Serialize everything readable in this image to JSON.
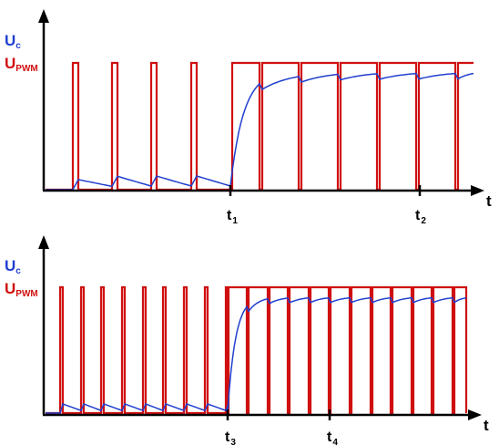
{
  "labels": {
    "uc_letter": "U",
    "uc_sub": "c",
    "upwm_letter": "U",
    "upwm_sub": "PWM",
    "t": "t",
    "t1_letter": "t",
    "t1_sub": "1",
    "t2_letter": "t",
    "t2_sub": "2",
    "t3_letter": "t",
    "t3_sub": "3",
    "t4_letter": "t",
    "t4_sub": "4"
  },
  "colors": {
    "uc": "#1f3fcf",
    "pwm": "#d01010",
    "pwm_light": "#f0a8a8",
    "axis": "#000000"
  }
}
